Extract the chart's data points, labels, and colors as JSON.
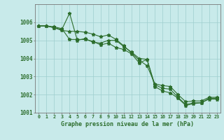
{
  "background_color": "#c8eaea",
  "grid_color": "#9ecece",
  "line_color": "#2d6e2d",
  "xlim": [
    -0.5,
    23.5
  ],
  "ylim": [
    1001,
    1007.0
  ],
  "yticks": [
    1001,
    1002,
    1003,
    1004,
    1005,
    1006
  ],
  "xticks": [
    0,
    1,
    2,
    3,
    4,
    5,
    6,
    7,
    8,
    9,
    10,
    11,
    12,
    13,
    14,
    15,
    16,
    17,
    18,
    19,
    20,
    21,
    22,
    23
  ],
  "line1_x": [
    0,
    1,
    2,
    3,
    4,
    5,
    6,
    7,
    8,
    9,
    10,
    11,
    12,
    13,
    14,
    15,
    16,
    17,
    18,
    19,
    20,
    21,
    22,
    23
  ],
  "line1_y": [
    1005.8,
    1005.8,
    1005.7,
    1005.6,
    1006.5,
    1005.0,
    1005.1,
    1004.9,
    1004.85,
    1005.0,
    1005.0,
    1004.65,
    1004.35,
    1004.0,
    1003.95,
    1002.55,
    1002.35,
    1002.3,
    1001.85,
    1001.45,
    1001.55,
    1001.55,
    1001.8,
    1001.8
  ],
  "line2_x": [
    0,
    1,
    2,
    3,
    4,
    5,
    6,
    7,
    8,
    9,
    10,
    11,
    12,
    13,
    14,
    15,
    16,
    17,
    18,
    19,
    20,
    21,
    22,
    23
  ],
  "line2_y": [
    1005.8,
    1005.8,
    1005.75,
    1005.65,
    1005.05,
    1005.05,
    1005.05,
    1004.95,
    1004.75,
    1004.85,
    1004.6,
    1004.5,
    1004.25,
    1003.75,
    1003.95,
    1002.45,
    1002.2,
    1002.1,
    1001.8,
    1001.4,
    1001.5,
    1001.55,
    1001.75,
    1001.75
  ],
  "line3_x": [
    0,
    1,
    2,
    3,
    4,
    5,
    6,
    7,
    8,
    9,
    10,
    11,
    12,
    13,
    14,
    15,
    16,
    17,
    18,
    19,
    20,
    21,
    22,
    23
  ],
  "line3_y": [
    1005.8,
    1005.8,
    1005.7,
    1005.55,
    1005.5,
    1005.5,
    1005.45,
    1005.35,
    1005.2,
    1005.3,
    1005.05,
    1004.7,
    1004.3,
    1003.9,
    1003.6,
    1002.6,
    1002.5,
    1002.45,
    1002.0,
    1001.6,
    1001.65,
    1001.65,
    1001.85,
    1001.85
  ],
  "xlabel": "Graphe pression niveau de la mer (hPa)",
  "xlabel_fontsize": 6.0,
  "ytick_fontsize": 5.5,
  "xtick_fontsize": 4.8
}
